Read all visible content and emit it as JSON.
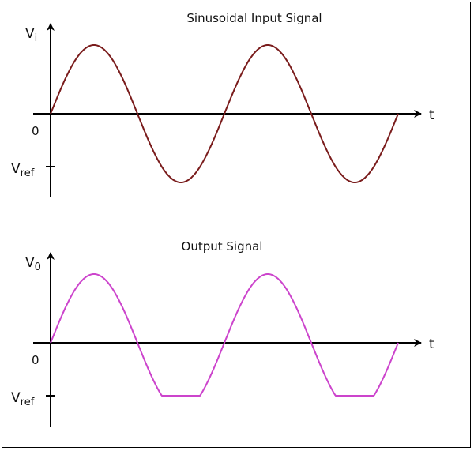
{
  "diagrams": [
    {
      "title": "Sinusoidal Input Signal",
      "y_axis_label": "V",
      "y_axis_subscript": "i",
      "x_axis_label": "t",
      "origin_label": "0",
      "ref_label": "V",
      "ref_subscript": "ref",
      "line_color": "#7a1c1c",
      "clipped": false
    },
    {
      "title": "Output Signal",
      "y_axis_label": "V",
      "y_axis_subscript": "0",
      "x_axis_label": "t",
      "origin_label": "0",
      "ref_label": "V",
      "ref_subscript": "ref",
      "line_color": "#cc44cc",
      "clipped": true
    }
  ],
  "chart_data": {
    "type": "line",
    "cycles": 2,
    "amplitude": 1,
    "vref": -0.77,
    "series": [
      {
        "name": "Sinusoidal Input Signal",
        "shape": "sine"
      },
      {
        "name": "Output Signal",
        "shape": "sine clipped at Vref"
      }
    ]
  }
}
